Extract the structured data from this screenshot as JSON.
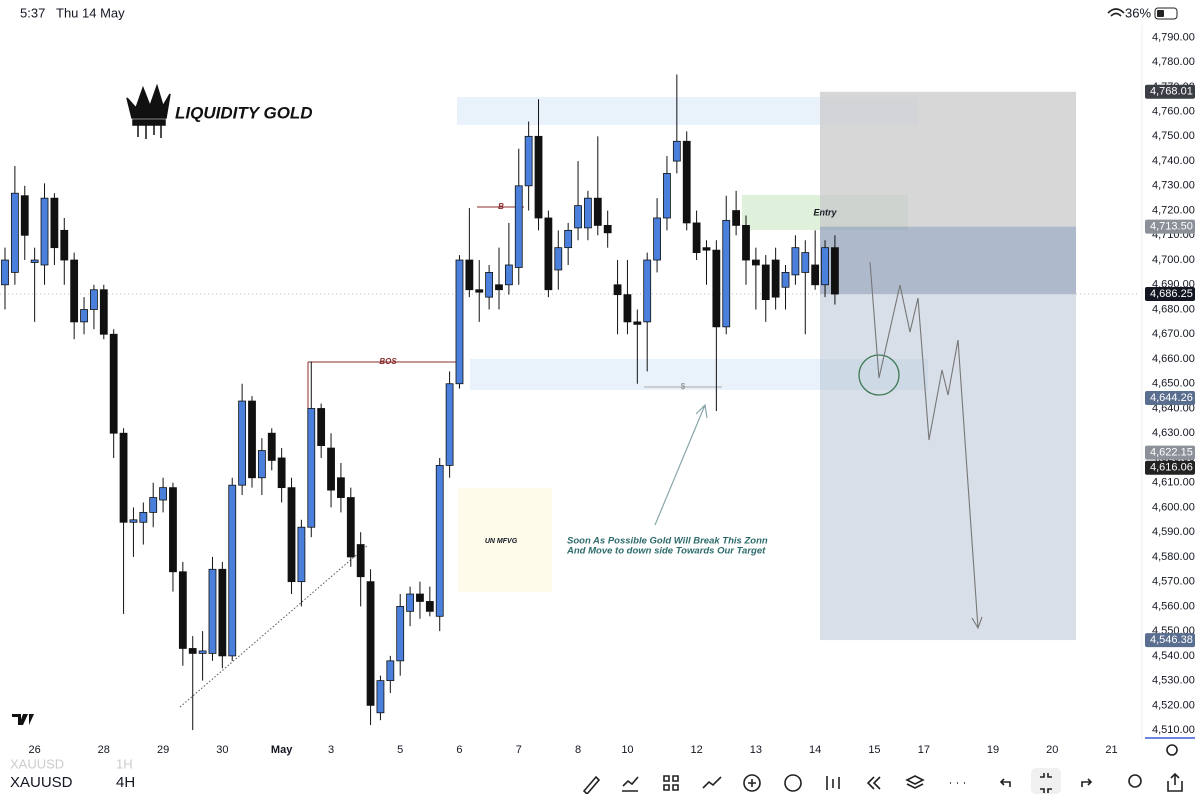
{
  "status_bar": {
    "time": "5:37",
    "date": "Thu 14 May",
    "battery": "36%"
  },
  "logo": "LIQUIDITY GOLD",
  "ghost_symbol": {
    "name": "XAUUSD",
    "interval": "1H"
  },
  "symbol": {
    "name": "XAUUSD",
    "interval": "4H"
  },
  "chart_data": {
    "type": "candlestick",
    "bull_color": "#4a7fdc",
    "bear_color": "#111111",
    "annotations": {
      "bos": "BOS",
      "b": "B",
      "liquidity": "$",
      "entry": "Entry",
      "fvg": "UN MFVG",
      "note": [
        "Soon As Possible Gold Will Break This Zonn",
        "And Move to down side Towards Our Target"
      ]
    },
    "categories": [
      null,
      null,
      null,
      "26",
      null,
      null,
      null,
      null,
      null,
      null,
      "28",
      null,
      null,
      null,
      null,
      null,
      "29",
      null,
      null,
      null,
      null,
      null,
      "30",
      null,
      null,
      null,
      null,
      null,
      "May",
      null,
      null,
      null,
      null,
      "3",
      null,
      null,
      null,
      null,
      null,
      null,
      "5",
      null,
      null,
      null,
      null,
      null,
      "6",
      null,
      null,
      null,
      null,
      null,
      "7",
      null,
      null,
      null,
      null,
      null,
      "8",
      null,
      null,
      null,
      null,
      "10",
      null,
      null,
      null,
      null,
      null,
      null,
      "12",
      null,
      null,
      null,
      null,
      null,
      "13",
      null,
      null,
      null,
      null,
      null,
      "14",
      null,
      null,
      null,
      null,
      null,
      "15",
      null,
      null,
      null,
      null,
      "17",
      null,
      null,
      null,
      null,
      null,
      null,
      "19",
      null,
      null,
      null,
      null,
      null,
      "20",
      null,
      null,
      null,
      null,
      null,
      "21",
      null
    ],
    "open": [
      4690,
      4695,
      4726,
      4699,
      4698,
      4725,
      4712,
      4700,
      4675,
      4680,
      4688,
      4670,
      4630,
      4594,
      4594,
      4598,
      4603,
      4608,
      4574,
      4543,
      4541,
      4541,
      4575,
      4540,
      4609,
      4643,
      4612,
      4630,
      4620,
      4608,
      4570,
      4592,
      4640,
      4624,
      4612,
      4604,
      4585,
      4570,
      4517,
      4530,
      4538,
      4558,
      4565,
      4562,
      4556,
      4617,
      4650,
      4700,
      4688,
      4685,
      4690,
      4690,
      4697,
      4730,
      4750,
      4717,
      4696,
      4705,
      4713,
      4713,
      4725,
      4714,
      4690,
      4686,
      4675,
      4675,
      4700,
      4717,
      4740,
      4748,
      4715,
      4705,
      4704,
      4673,
      4720,
      4714,
      4700,
      4698,
      4700,
      4689,
      4694,
      4695,
      4698,
      4690,
      4705,
      null,
      null,
      null,
      null,
      null,
      null,
      null,
      null,
      null,
      null,
      null,
      null,
      null,
      null,
      null,
      null,
      null,
      null,
      null,
      null,
      null,
      null,
      null,
      null,
      null,
      null,
      null,
      null,
      null
    ],
    "high": [
      4705,
      4738,
      4730,
      4705,
      4731,
      4727,
      4717,
      4703,
      4685,
      4690,
      4690,
      4672,
      4632,
      4600,
      4602,
      4610,
      4612,
      4610,
      4578,
      4548,
      4550,
      4580,
      4578,
      4612,
      4650,
      4645,
      4628,
      4632,
      4624,
      4612,
      4595,
      4659,
      4642,
      4630,
      4618,
      4608,
      4590,
      4575,
      4532,
      4540,
      4565,
      4568,
      4570,
      4568,
      4620,
      4655,
      4702,
      4721,
      4700,
      4698,
      4705,
      4715,
      4745,
      4756,
      4765,
      4720,
      4712,
      4715,
      4740,
      4728,
      4750,
      4720,
      4700,
      4700,
      4680,
      4703,
      4725,
      4742,
      4775,
      4752,
      4720,
      4708,
      4708,
      4726,
      4728,
      4718,
      4705,
      4702,
      4705,
      4698,
      4710,
      4708,
      4712,
      4708,
      4710,
      null,
      null,
      null,
      null,
      null,
      null,
      null,
      null,
      null,
      null,
      null,
      null,
      null,
      null,
      null,
      null,
      null,
      null,
      null,
      null,
      null,
      null,
      null,
      null,
      null,
      null,
      null,
      null,
      null
    ],
    "low": [
      4680,
      4690,
      4700,
      4675,
      4690,
      4698,
      4690,
      4668,
      4670,
      4672,
      4668,
      4620,
      4557,
      4580,
      4585,
      4592,
      4598,
      4566,
      4536,
      4510,
      4530,
      4538,
      4535,
      4538,
      4605,
      4608,
      4605,
      4615,
      4602,
      4565,
      4560,
      4588,
      4620,
      4600,
      4598,
      4576,
      4560,
      4512,
      4514,
      4525,
      4532,
      4552,
      4555,
      4556,
      4550,
      4612,
      4648,
      4685,
      4675,
      4680,
      4680,
      4686,
      4690,
      4720,
      4712,
      4685,
      4688,
      4698,
      4708,
      4708,
      4710,
      4705,
      4670,
      4670,
      4650,
      4655,
      4695,
      4712,
      4735,
      4712,
      4700,
      4690,
      4639,
      4670,
      4710,
      4690,
      4680,
      4675,
      4680,
      4680,
      4690,
      4670,
      4688,
      4685,
      4682,
      null,
      null,
      null,
      null,
      null,
      null,
      null,
      null,
      null,
      null,
      null,
      null,
      null,
      null,
      null,
      null,
      null,
      null,
      null,
      null,
      null,
      null,
      null,
      null,
      null,
      null,
      null,
      null,
      null
    ],
    "close": [
      4700,
      4727,
      4710,
      4700,
      4725,
      4705,
      4700,
      4675,
      4680,
      4688,
      4670,
      4630,
      4594,
      4595,
      4598,
      4604,
      4608,
      4574,
      4543,
      4541,
      4542,
      4575,
      4540,
      4609,
      4643,
      4612,
      4623,
      4619,
      4608,
      4570,
      4592,
      4640,
      4625,
      4607,
      4604,
      4580,
      4572,
      4520,
      4530,
      4538,
      4560,
      4565,
      4562,
      4558,
      4617,
      4650,
      4700,
      4688,
      4687,
      4695,
      4688,
      4698,
      4730,
      4750,
      4717,
      4688,
      4705,
      4712,
      4722,
      4725,
      4714,
      4711,
      4686,
      4675,
      4674,
      4700,
      4717,
      4735,
      4748,
      4715,
      4703,
      4704,
      4673,
      4716,
      4714,
      4700,
      4698,
      4684,
      4685,
      4695,
      4705,
      4703,
      4690,
      4705,
      4686.25,
      null,
      null,
      null,
      null,
      null,
      null,
      null,
      null,
      null,
      null,
      null,
      null,
      null,
      null,
      null,
      null,
      null,
      null,
      null,
      null,
      null,
      null,
      null,
      null,
      null,
      null,
      null,
      null,
      null
    ],
    "ylim": [
      4506,
      4795
    ],
    "yticks": [
      {
        "value": 4510,
        "label": "4,510.00"
      },
      {
        "value": 4520,
        "label": "4,520.00"
      },
      {
        "value": 4530,
        "label": "4,530.00"
      },
      {
        "value": 4540,
        "label": "4,540.00"
      },
      {
        "value": 4550,
        "label": "4,550.00"
      },
      {
        "value": 4560,
        "label": "4,560.00"
      },
      {
        "value": 4570,
        "label": "4,570.00"
      },
      {
        "value": 4580,
        "label": "4,580.00"
      },
      {
        "value": 4590,
        "label": "4,590.00"
      },
      {
        "value": 4600,
        "label": "4,600.00"
      },
      {
        "value": 4610,
        "label": "4,610.00"
      },
      {
        "value": 4620,
        "label": "4,620.00"
      },
      {
        "value": 4630,
        "label": "4,630.00"
      },
      {
        "value": 4640,
        "label": "4,640.00"
      },
      {
        "value": 4650,
        "label": "4,650.00"
      },
      {
        "value": 4660,
        "label": "4,660.00"
      },
      {
        "value": 4670,
        "label": "4,670.00"
      },
      {
        "value": 4680,
        "label": "4,680.00"
      },
      {
        "value": 4690,
        "label": "4,690.00"
      },
      {
        "value": 4700,
        "label": "4,700.00"
      },
      {
        "value": 4710,
        "label": "4,710.00"
      },
      {
        "value": 4720,
        "label": "4,720.00"
      },
      {
        "value": 4730,
        "label": "4,730.00"
      },
      {
        "value": 4740,
        "label": "4,740.00"
      },
      {
        "value": 4750,
        "label": "4,750.00"
      },
      {
        "value": 4760,
        "label": "4,760.00"
      },
      {
        "value": 4770,
        "label": "4,770.00"
      },
      {
        "value": 4780,
        "label": "4,780.00"
      },
      {
        "value": 4790,
        "label": "4,790.00"
      }
    ],
    "price_labels": [
      {
        "value": 4768.01,
        "label": "4,768.01",
        "color": "#3a3d44"
      },
      {
        "value": 4713.5,
        "label": "4,713.50",
        "color": "#8b9099"
      },
      {
        "value": 4686.25,
        "label": "4,686.25",
        "color": "#131722"
      },
      {
        "value": 4644.26,
        "label": "4,644.26",
        "color": "#5a6e90"
      },
      {
        "value": 4622.15,
        "label": "4,622.15",
        "color": "#8b9099"
      },
      {
        "value": 4616.06,
        "label": "4,616.06",
        "color": "#222222"
      },
      {
        "value": 4546.38,
        "label": "4,546.38",
        "color": "#5a6e90"
      }
    ],
    "grid": false
  }
}
